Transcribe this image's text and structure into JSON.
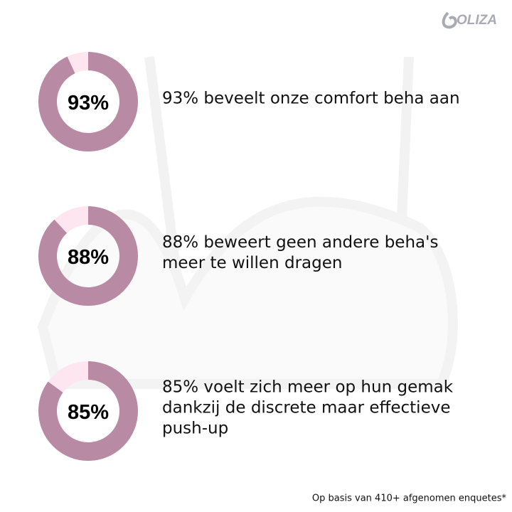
{
  "logo": "OLIZA",
  "stats": [
    {
      "value": 93,
      "label": "93%",
      "lines": [
        "93% beveelt onze comfort beha aan"
      ]
    },
    {
      "value": 88,
      "label": "88%",
      "lines": [
        "88% beweert geen andere beha's",
        "meer te willen dragen"
      ]
    },
    {
      "value": 85,
      "label": "85%",
      "lines": [
        "85% voelt zich meer op hun gemak",
        "dankzij de discrete maar effectieve",
        "push-up"
      ]
    }
  ],
  "footnote": "Op basis van 410+ afgenomen enquetes*"
}
